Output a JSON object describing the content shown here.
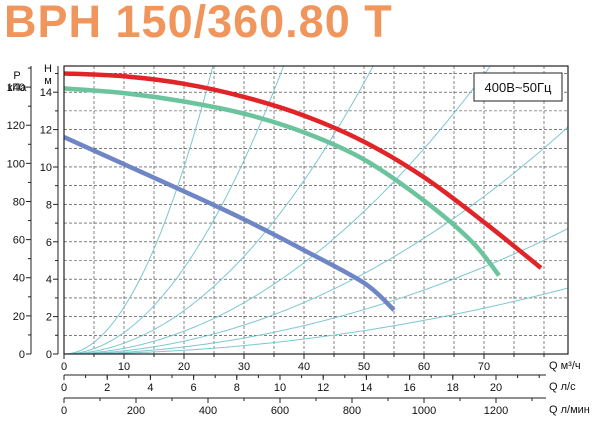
{
  "title": "BPH 150/360.80 T",
  "chart_data": {
    "type": "line",
    "title": "BPH 150/360.80 T",
    "annotation": "400В~50Гц",
    "left_axes": {
      "pressure": {
        "label_top": "P",
        "label_bottom": "кПа",
        "ticks": [
          "0",
          "20",
          "40",
          "60",
          "80",
          "100",
          "120",
          "140"
        ]
      },
      "head": {
        "label_top": "H",
        "label_bottom": "м",
        "ticks": [
          "0",
          "2",
          "4",
          "6",
          "8",
          "10",
          "12",
          "14"
        ]
      }
    },
    "x_axes": [
      {
        "unit": "Q м³/ч",
        "ticks": [
          "0",
          "10",
          "20",
          "30",
          "40",
          "50",
          "60",
          "70"
        ]
      },
      {
        "unit": "Q л/с",
        "ticks": [
          "0",
          "2",
          "4",
          "6",
          "8",
          "10",
          "12",
          "14",
          "16",
          "18",
          "20"
        ]
      },
      {
        "unit": "Q л/мин",
        "ticks": [
          "0",
          "200",
          "400",
          "600",
          "800",
          "1000",
          "1200"
        ]
      }
    ],
    "xlim": [
      0,
      84
    ],
    "ylim": [
      0,
      15.4
    ],
    "grid": true,
    "series": [
      {
        "color": "#e02428",
        "x": [
          0,
          10,
          20,
          30,
          40,
          50,
          60,
          70,
          79.5
        ],
        "y": [
          15.0,
          14.85,
          14.45,
          13.75,
          12.75,
          11.35,
          9.45,
          7.05,
          4.6
        ]
      },
      {
        "color": "#6cc49e",
        "x": [
          0,
          10,
          20,
          30,
          40,
          50,
          60,
          68,
          72.5
        ],
        "y": [
          14.2,
          13.95,
          13.5,
          12.85,
          11.85,
          10.4,
          8.2,
          6.0,
          4.2
        ]
      },
      {
        "color": "#6f86c6",
        "x": [
          0,
          10,
          20,
          30,
          40,
          50,
          55
        ],
        "y": [
          11.6,
          10.15,
          8.7,
          7.2,
          5.55,
          3.8,
          2.35
        ]
      }
    ],
    "system_curve_coefficients": [
      0.025,
      0.0115,
      0.0058,
      0.00305,
      0.00172,
      0.00095,
      0.0005
    ],
    "system_curve_color": "#7cc7d1"
  }
}
